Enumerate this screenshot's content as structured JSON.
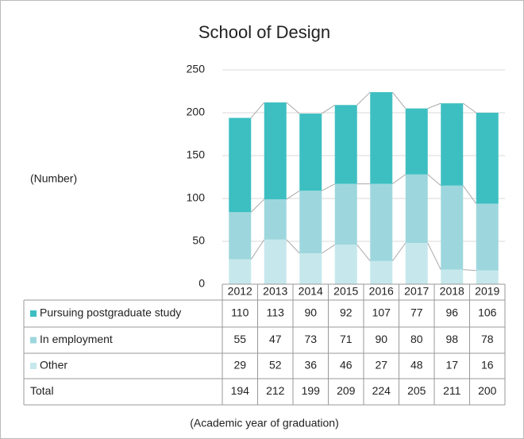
{
  "chart_data": {
    "type": "stacked_bar",
    "title": "School of Design",
    "y_label": "(Number)",
    "x_label": "(Academic year of graduation)",
    "categories": [
      "2012",
      "2013",
      "2014",
      "2015",
      "2016",
      "2017",
      "2018",
      "2019"
    ],
    "series": [
      {
        "name": "Other",
        "color": "#c6e8ec",
        "values": [
          29,
          52,
          36,
          46,
          27,
          48,
          17,
          16
        ]
      },
      {
        "name": "In employment",
        "color": "#9dd7dd",
        "values": [
          55,
          47,
          73,
          71,
          90,
          80,
          98,
          78
        ]
      },
      {
        "name": "Pursuing postgraduate study",
        "color": "#3dbfc2",
        "values": [
          110,
          113,
          90,
          92,
          107,
          77,
          96,
          106
        ]
      }
    ],
    "total_label": "Total",
    "totals": [
      194,
      212,
      199,
      209,
      224,
      205,
      211,
      200
    ],
    "ylim": [
      0,
      250
    ],
    "yticks": [
      0,
      50,
      100,
      150,
      200,
      250
    ],
    "grid": true
  }
}
